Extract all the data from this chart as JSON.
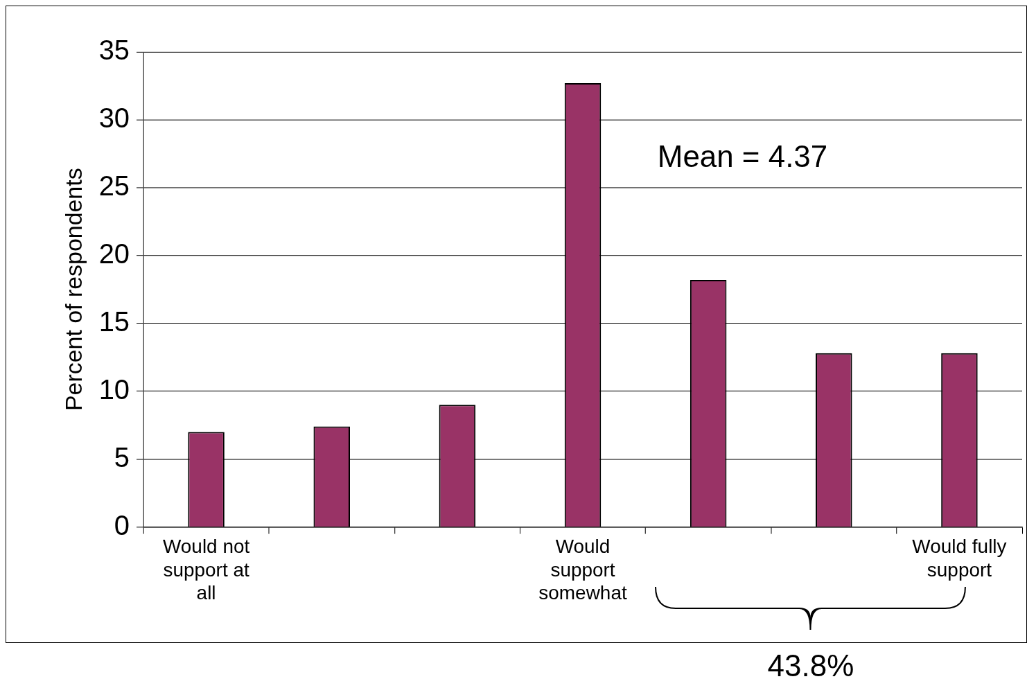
{
  "chart_data": {
    "type": "bar",
    "ylabel": "Percent of respondents",
    "categories": [
      "Would not support at all",
      null,
      null,
      "Would support somewhat",
      null,
      null,
      "Would fully support"
    ],
    "values": [
      7.0,
      7.4,
      9.0,
      32.7,
      18.2,
      12.8,
      12.8
    ],
    "color": "#993366",
    "ylim": [
      0,
      35
    ],
    "yticks": [
      0,
      5,
      10,
      15,
      20,
      25,
      30,
      35
    ],
    "grid": "y",
    "annotations": [
      "Mean = 4.37",
      "43.8%"
    ]
  }
}
